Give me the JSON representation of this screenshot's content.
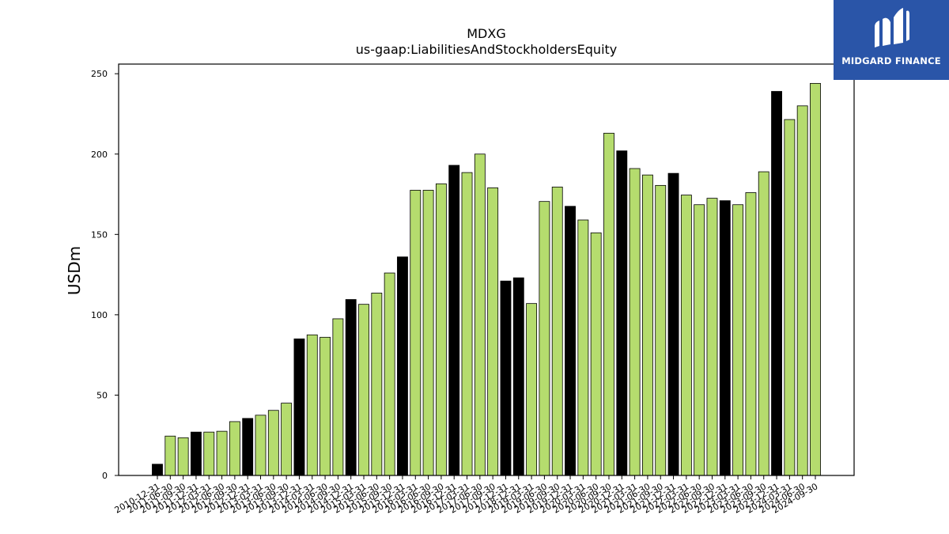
{
  "chart_data": {
    "type": "bar",
    "title": "MDXG",
    "subtitle": "us-gaap:LiabilitiesAndStockholdersEquity",
    "xlabel": "",
    "ylabel": "USDm",
    "ylim": [
      0,
      256
    ],
    "yticks": [
      0,
      50,
      100,
      150,
      200,
      250
    ],
    "grid": false,
    "colors": {
      "annual": "#000000",
      "quarterly": "#b5dc6e",
      "edge": "#000000"
    },
    "categories": [
      "2010-12-31",
      "2011-06-30",
      "2011-09-30",
      "2011-12-31",
      "2012-03-31",
      "2012-06-30",
      "2012-09-30",
      "2012-12-31",
      "2013-03-31",
      "2013-06-30",
      "2013-09-30",
      "2013-12-31",
      "2014-03-31",
      "2014-06-30",
      "2014-09-30",
      "2014-12-31",
      "2015-03-31",
      "2015-06-30",
      "2015-09-30",
      "2015-12-31",
      "2016-03-31",
      "2016-06-30",
      "2016-09-30",
      "2016-12-31",
      "2017-03-31",
      "2017-06-30",
      "2017-09-30",
      "2017-12-31",
      "2018-12-31",
      "2019-03-31",
      "2019-06-30",
      "2019-09-30",
      "2019-12-31",
      "2020-03-31",
      "2020-06-30",
      "2020-09-30",
      "2020-12-31",
      "2021-03-31",
      "2021-06-30",
      "2021-09-30",
      "2021-12-31",
      "2022-03-31",
      "2022-06-30",
      "2022-09-30",
      "2022-12-31",
      "2023-03-31",
      "2023-06-30",
      "2023-09-30",
      "2023-12-31",
      "2024-03-31",
      "2024-06-30",
      "2024-09-30"
    ],
    "values": [
      7,
      24.5,
      23.5,
      27,
      27,
      27.5,
      33.5,
      35.5,
      37.5,
      40.5,
      45,
      85,
      87.5,
      86,
      97.5,
      109.5,
      106.5,
      113.5,
      126,
      136,
      177.5,
      177.5,
      181.5,
      193,
      188.5,
      200,
      179,
      121,
      123,
      107,
      170.5,
      179.5,
      167.5,
      159,
      151,
      213,
      202,
      191,
      187,
      180.5,
      188,
      174.5,
      168.5,
      172.5,
      171,
      168.5,
      176,
      189,
      239,
      221.5,
      230,
      244
    ],
    "annual_flags": [
      1,
      0,
      0,
      1,
      0,
      0,
      0,
      1,
      0,
      0,
      0,
      1,
      0,
      0,
      0,
      1,
      0,
      0,
      0,
      1,
      0,
      0,
      0,
      1,
      0,
      0,
      0,
      1,
      1,
      0,
      0,
      0,
      1,
      0,
      0,
      0,
      1,
      0,
      0,
      0,
      1,
      0,
      0,
      0,
      1,
      0,
      0,
      0,
      1,
      0,
      0,
      0
    ]
  },
  "logo": {
    "text": "MIDGARD FINANCE",
    "icon": "midgard-m-logo-icon",
    "background": "#2a55a8"
  }
}
